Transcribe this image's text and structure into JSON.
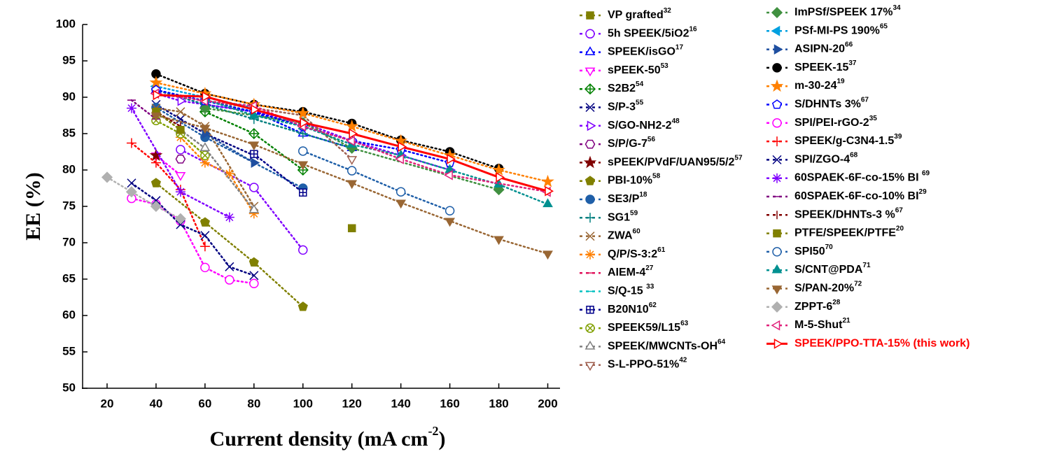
{
  "chart_data": {
    "type": "line",
    "ylabel": "EE (%)",
    "xlabel": {
      "text": "Current density (mA cm",
      "sup": "-2",
      "close": ")"
    },
    "xlim": [
      10,
      205
    ],
    "ylim": [
      50,
      100
    ],
    "xticks": [
      20,
      40,
      60,
      80,
      100,
      120,
      140,
      160,
      180,
      200
    ],
    "yticks": [
      50,
      55,
      60,
      65,
      70,
      75,
      80,
      85,
      90,
      95,
      100
    ],
    "series": [
      {
        "name": "VP grafted",
        "ref": "32",
        "color": "#808000",
        "marker": "square",
        "filled": true,
        "line": "dotted",
        "x": [
          120
        ],
        "values": [
          72
        ]
      },
      {
        "name": "5h SPEEK/5iO2",
        "ref": "16",
        "color": "#8000ff",
        "marker": "circle",
        "filled": false,
        "line": "dotted",
        "x": [
          50,
          80,
          100
        ],
        "values": [
          82.8,
          77.6,
          69
        ]
      },
      {
        "name": "SPEEK/isGO",
        "ref": "17",
        "color": "#0000ff",
        "marker": "tri-up",
        "filled": false,
        "line": "dotted",
        "x": [
          40,
          60,
          80,
          100,
          120
        ],
        "values": [
          91,
          89,
          88,
          85,
          83
        ]
      },
      {
        "name": "sPEEK-50",
        "ref": "53",
        "color": "#ff00ff",
        "marker": "tri-down",
        "filled": false,
        "line": "dotted",
        "x": [
          40,
          50
        ],
        "values": [
          82,
          79.3
        ]
      },
      {
        "name": "S2B2",
        "ref": "54",
        "color": "#008000",
        "marker": "diamond-plus",
        "filled": false,
        "line": "dotted",
        "x": [
          60,
          80,
          100
        ],
        "values": [
          88,
          85,
          80
        ]
      },
      {
        "name": "S/P-3",
        "ref": "55",
        "color": "#000080",
        "marker": "cross",
        "filled": false,
        "line": "dotted",
        "x": [
          40,
          50,
          60,
          80
        ],
        "values": [
          89,
          87,
          85,
          82
        ]
      },
      {
        "name": "S/GO-NH2-2",
        "ref": "48",
        "color": "#8000ff",
        "marker": "tri-right",
        "filled": false,
        "line": "dotted",
        "x": [
          40,
          50,
          60,
          80,
          100,
          120,
          140,
          160
        ],
        "values": [
          90.5,
          89.5,
          89,
          88,
          86.5,
          84,
          82,
          80
        ]
      },
      {
        "name": "S/P/G-7",
        "ref": "56",
        "color": "#800080",
        "marker": "hexagon",
        "filled": false,
        "line": "dotted",
        "x": [
          50
        ],
        "values": [
          81.5
        ]
      },
      {
        "name": "sPEEK/PVdF/UAN95/5/2",
        "ref": "57",
        "color": "#800000",
        "marker": "star",
        "filled": true,
        "line": "dotted",
        "x": [
          40
        ],
        "values": [
          82
        ]
      },
      {
        "name": "PBI-10%",
        "ref": "58",
        "color": "#808000",
        "marker": "pentagon",
        "filled": true,
        "line": "dotted",
        "x": [
          40,
          60,
          80,
          100
        ],
        "values": [
          78.2,
          72.8,
          67.3,
          61.2
        ]
      },
      {
        "name": "SE3/P",
        "ref": "18",
        "color": "#1f5fa8",
        "marker": "circle",
        "filled": true,
        "line": "dotted",
        "x": [
          40,
          60,
          100
        ],
        "values": [
          88.6,
          84.5,
          77.5
        ]
      },
      {
        "name": "SG1",
        "ref": "59",
        "color": "#008080",
        "marker": "plus",
        "filled": false,
        "line": "dotted",
        "x": [
          40,
          60,
          80,
          100,
          120
        ],
        "values": [
          91,
          89,
          87,
          85,
          83
        ]
      },
      {
        "name": "ZWA",
        "ref": "60",
        "color": "#996633",
        "marker": "cross",
        "filled": false,
        "line": "dotted",
        "x": [
          40,
          50,
          60,
          80
        ],
        "values": [
          88.5,
          88,
          86,
          75
        ]
      },
      {
        "name": "Q/P/S-3:2",
        "ref": "61",
        "color": "#ff8000",
        "marker": "asterisk",
        "filled": false,
        "line": "dotted",
        "x": [
          50,
          60,
          70,
          80
        ],
        "values": [
          84.5,
          81,
          79.5,
          74
        ]
      },
      {
        "name": "AIEM-4",
        "ref": "27",
        "color": "#e0105a",
        "marker": "dash",
        "filled": false,
        "line": "dotted",
        "x": [
          30
        ],
        "values": [
          89.6
        ]
      },
      {
        "name": "S/Q-15 ",
        "ref": "33",
        "color": "#00c0c0",
        "marker": "dash",
        "filled": false,
        "line": "dotted",
        "x": [
          40,
          60,
          80
        ],
        "values": [
          91,
          89.5,
          88
        ]
      },
      {
        "name": "B20N10",
        "ref": "62",
        "color": "#00008b",
        "marker": "square-plus",
        "filled": false,
        "line": "dotted",
        "x": [
          80,
          100
        ],
        "values": [
          82.2,
          76.9
        ]
      },
      {
        "name": "SPEEK59/L15",
        "ref": "63",
        "color": "#80a000",
        "marker": "circle-x",
        "filled": false,
        "line": "dotted",
        "x": [
          40,
          50,
          60
        ],
        "values": [
          86.8,
          85,
          82
        ]
      },
      {
        "name": "SPEEK/MWCNTs-OH",
        "ref": "64",
        "color": "#808080",
        "marker": "tri-up",
        "filled": false,
        "line": "dotted",
        "x": [
          50,
          60,
          80
        ],
        "values": [
          85.5,
          83,
          74.5
        ]
      },
      {
        "name": "S-L-PPO-51%",
        "ref": "42",
        "color": "#a06050",
        "marker": "tri-down",
        "filled": false,
        "line": "dotted",
        "x": [
          60,
          80,
          100,
          120
        ],
        "values": [
          89.5,
          88.5,
          87.5,
          81.5
        ]
      },
      {
        "name": "ImPSf/SPEEK 17%",
        "ref": "34",
        "color": "#409040",
        "marker": "diamond",
        "filled": true,
        "line": "dotted",
        "x": [
          60,
          100,
          120,
          180
        ],
        "values": [
          88.5,
          86.5,
          83,
          77.3
        ]
      },
      {
        "name": "PSf-MI-PS 190%",
        "ref": "65",
        "color": "#00a0e0",
        "marker": "tri-left",
        "filled": true,
        "line": "dotted",
        "x": [
          40,
          60,
          80
        ],
        "values": [
          91.5,
          90,
          88.5
        ]
      },
      {
        "name": "ASIPN-20",
        "ref": "66",
        "color": "#1f4fa0",
        "marker": "tri-right",
        "filled": true,
        "line": "dotted",
        "x": [
          60,
          80
        ],
        "values": [
          85,
          81
        ]
      },
      {
        "name": "SPEEK-15",
        "ref": "37",
        "color": "#000000",
        "marker": "circle",
        "filled": true,
        "line": "dotted",
        "x": [
          40,
          60,
          80,
          100,
          120,
          140,
          160,
          180
        ],
        "values": [
          93.2,
          90.5,
          89,
          88,
          86.4,
          84.1,
          82.5,
          80.2
        ]
      },
      {
        "name": "m-30-24",
        "ref": "19",
        "color": "#ff8000",
        "marker": "star",
        "filled": true,
        "line": "dotted",
        "x": [
          40,
          60,
          80,
          100,
          120,
          140,
          160,
          180,
          200
        ],
        "values": [
          92,
          90.5,
          89,
          87.8,
          86,
          84,
          82,
          80,
          78.4
        ]
      },
      {
        "name": "S/DHNTs 3%",
        "ref": "67",
        "color": "#0000ff",
        "marker": "pentagon",
        "filled": false,
        "line": "dotted",
        "x": [
          40,
          60,
          80,
          100,
          120,
          140,
          160
        ],
        "values": [
          91,
          89.5,
          88,
          86,
          84,
          82.8,
          81
        ]
      },
      {
        "name": "SPI/PEI-rGO-2",
        "ref": "35",
        "color": "#ff00ff",
        "marker": "circle",
        "filled": false,
        "line": "dotted",
        "x": [
          30,
          40,
          50,
          60,
          70,
          80
        ],
        "values": [
          76.1,
          75.3,
          73,
          66.6,
          64.9,
          64.4
        ]
      },
      {
        "name": "SPEEK/g-C3N4-1.5",
        "ref": "39",
        "color": "#ff0000",
        "marker": "plus",
        "filled": false,
        "line": "dotted",
        "x": [
          30,
          40,
          50,
          60
        ],
        "values": [
          83.7,
          81,
          77.3,
          69.5
        ]
      },
      {
        "name": "SPI/ZGO-4",
        "ref": "68",
        "color": "#000080",
        "marker": "cross",
        "filled": false,
        "line": "dotted",
        "x": [
          30,
          40,
          50,
          60,
          70,
          80
        ],
        "values": [
          78.2,
          75.8,
          72.5,
          71,
          66.7,
          65.5
        ]
      },
      {
        "name": "60SPAEK-6F-co-15% BI ",
        "ref": "69",
        "color": "#8000ff",
        "marker": "asterisk",
        "filled": false,
        "line": "dotted",
        "x": [
          30,
          50,
          70
        ],
        "values": [
          88.5,
          77,
          73.5
        ]
      },
      {
        "name": "60SPAEK-6F-co-10% BI",
        "ref": "29",
        "color": "#800080",
        "marker": "dash",
        "filled": false,
        "line": "dotted",
        "x": [
          30,
          40
        ],
        "values": [
          89.6,
          87
        ]
      },
      {
        "name": "SPEEK/DHNTs-3 %",
        "ref": "67",
        "color": "#800000",
        "marker": "vbar",
        "filled": false,
        "line": "dotted",
        "x": [
          40,
          50
        ],
        "values": [
          88,
          86
        ]
      },
      {
        "name": "PTFE/SPEEK/PTFE",
        "ref": "20",
        "color": "#808000",
        "marker": "square",
        "filled": true,
        "line": "dotted",
        "x": [
          40,
          50
        ],
        "values": [
          88,
          85.5
        ]
      },
      {
        "name": "SPI50",
        "ref": "70",
        "color": "#1f5fa8",
        "marker": "circle",
        "filled": false,
        "line": "dotted",
        "x": [
          100,
          120,
          140,
          160
        ],
        "values": [
          82.6,
          79.9,
          77,
          74.4
        ]
      },
      {
        "name": "S/CNT@PDA",
        "ref": "71",
        "color": "#009090",
        "marker": "tri-up",
        "filled": true,
        "line": "dotted",
        "x": [
          60,
          80,
          100,
          120,
          140,
          160,
          180,
          200
        ],
        "values": [
          89.7,
          87.5,
          86,
          83.5,
          82,
          80,
          78,
          75.3
        ]
      },
      {
        "name": "S/PAN-20%",
        "ref": "72",
        "color": "#996633",
        "marker": "tri-down",
        "filled": true,
        "line": "dotted",
        "x": [
          40,
          60,
          80,
          100,
          120,
          140,
          160,
          180,
          200
        ],
        "values": [
          87.5,
          85.8,
          83.5,
          80.8,
          78.2,
          75.5,
          73,
          70.5,
          68.5
        ]
      },
      {
        "name": "ZPPT-6",
        "ref": "28",
        "color": "#b0b0b0",
        "marker": "diamond",
        "filled": true,
        "line": "dotted",
        "x": [
          20,
          30,
          40,
          50
        ],
        "values": [
          79,
          77,
          75,
          73.3
        ]
      },
      {
        "name": "M-5-Shut",
        "ref": "21",
        "color": "#e0207a",
        "marker": "tri-left",
        "filled": false,
        "line": "dotted",
        "x": [
          40,
          60,
          80,
          100,
          120,
          140,
          160,
          200
        ],
        "values": [
          90.5,
          89.5,
          88.8,
          86,
          84,
          81.5,
          79.3,
          77
        ]
      },
      {
        "name": "SPEEK/PPO-TTA-15% (this work)",
        "color": "#ff0000",
        "marker": "tri-right",
        "filled": false,
        "line": "solid",
        "x": [
          40,
          60,
          80,
          100,
          120,
          140,
          160,
          180,
          200
        ],
        "values": [
          90.3,
          90.1,
          88.3,
          86.5,
          85,
          83.2,
          81.5,
          79,
          77.1
        ]
      }
    ]
  }
}
